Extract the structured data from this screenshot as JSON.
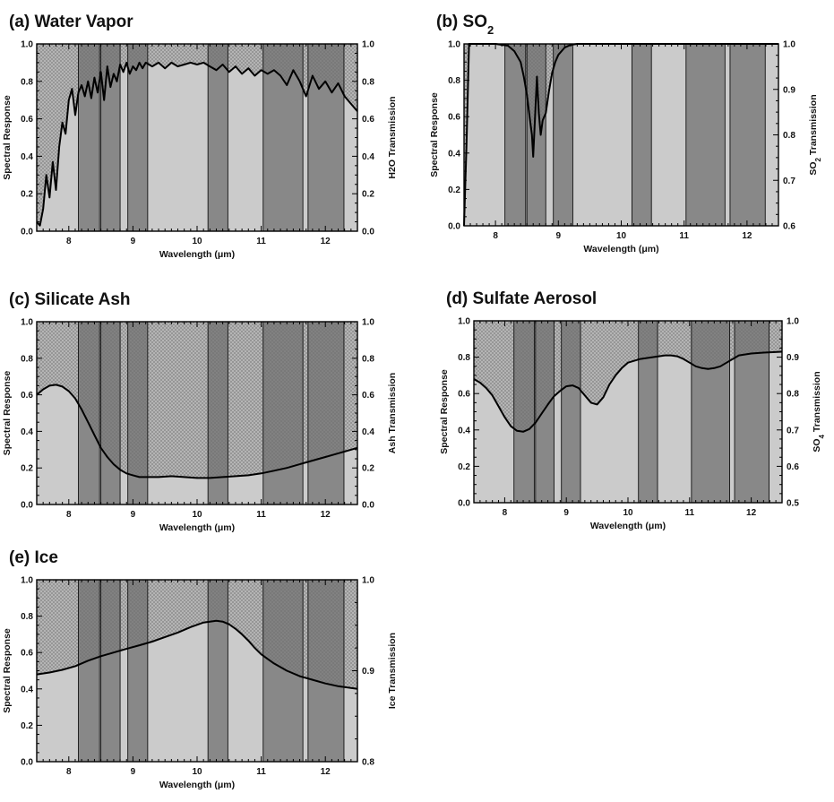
{
  "chart_data": [
    {
      "type": "line",
      "title": "(a) Water Vapor",
      "xlabel": "Wavelength (μm)",
      "ylabel": "Spectral Response",
      "y2label": "H2O Transmission",
      "xlim": [
        7.5,
        12.5
      ],
      "ylim": [
        0,
        1
      ],
      "y2lim": [
        0,
        1
      ],
      "xticks": [
        "8",
        "9",
        "10",
        "11",
        "12"
      ],
      "yticks": [
        "0.0",
        "0.2",
        "0.4",
        "0.6",
        "0.8",
        "1.0"
      ],
      "y2ticks": [
        "0.0",
        "0.2",
        "0.4",
        "0.6",
        "0.8",
        "1.0"
      ],
      "bands": [
        [
          8.15,
          8.48
        ],
        [
          8.5,
          8.8
        ],
        [
          8.92,
          9.23
        ],
        [
          10.17,
          10.48
        ],
        [
          11.03,
          11.65
        ],
        [
          11.73,
          12.29
        ]
      ],
      "series": [
        {
          "x": [
            7.5,
            7.55,
            7.6,
            7.65,
            7.7,
            7.75,
            7.8,
            7.85,
            7.9,
            7.95,
            8.0,
            8.05,
            8.1,
            8.15,
            8.2,
            8.25,
            8.3,
            8.35,
            8.4,
            8.45,
            8.5,
            8.55,
            8.6,
            8.65,
            8.7,
            8.75,
            8.8,
            8.85,
            8.9,
            8.95,
            9.0,
            9.05,
            9.1,
            9.15,
            9.2,
            9.3,
            9.4,
            9.5,
            9.6,
            9.7,
            9.8,
            9.9,
            10.0,
            10.1,
            10.2,
            10.3,
            10.4,
            10.5,
            10.6,
            10.7,
            10.8,
            10.9,
            11.0,
            11.1,
            11.2,
            11.3,
            11.4,
            11.5,
            11.6,
            11.7,
            11.8,
            11.9,
            12.0,
            12.1,
            12.2,
            12.3,
            12.4,
            12.5
          ],
          "values": [
            0.05,
            0.03,
            0.12,
            0.3,
            0.18,
            0.37,
            0.22,
            0.45,
            0.58,
            0.52,
            0.7,
            0.76,
            0.62,
            0.74,
            0.78,
            0.72,
            0.8,
            0.71,
            0.82,
            0.74,
            0.85,
            0.7,
            0.88,
            0.77,
            0.84,
            0.8,
            0.89,
            0.85,
            0.9,
            0.84,
            0.88,
            0.86,
            0.9,
            0.87,
            0.9,
            0.88,
            0.9,
            0.87,
            0.9,
            0.88,
            0.89,
            0.9,
            0.89,
            0.9,
            0.88,
            0.86,
            0.89,
            0.85,
            0.88,
            0.84,
            0.87,
            0.83,
            0.86,
            0.84,
            0.86,
            0.83,
            0.78,
            0.86,
            0.8,
            0.72,
            0.83,
            0.76,
            0.8,
            0.74,
            0.79,
            0.72,
            0.68,
            0.64
          ]
        }
      ]
    },
    {
      "type": "line",
      "title": "(b) SO",
      "title_sub": "2",
      "xlabel": "Wavelength (μm)",
      "ylabel": "Spectral Response",
      "y2label": "SO Transmission",
      "y2label_sub": "2",
      "xlim": [
        7.5,
        12.5
      ],
      "ylim": [
        0,
        1
      ],
      "y2lim": [
        0.6,
        1
      ],
      "xticks": [
        "8",
        "9",
        "10",
        "11",
        "12"
      ],
      "yticks": [
        "0.0",
        "0.2",
        "0.4",
        "0.6",
        "0.8",
        "1.0"
      ],
      "y2ticks": [
        "0.6",
        "0.7",
        "0.8",
        "0.9",
        "1.0"
      ],
      "bands": [
        [
          8.15,
          8.48
        ],
        [
          8.5,
          8.8
        ],
        [
          8.92,
          9.23
        ],
        [
          10.17,
          10.48
        ],
        [
          11.03,
          11.65
        ],
        [
          11.73,
          12.29
        ]
      ],
      "series": [
        {
          "x": [
            7.5,
            7.54,
            7.58,
            7.62,
            7.7,
            8.0,
            8.2,
            8.3,
            8.4,
            8.45,
            8.5,
            8.55,
            8.58,
            8.6,
            8.63,
            8.66,
            8.69,
            8.72,
            8.75,
            8.8,
            8.85,
            8.9,
            8.95,
            9.0,
            9.1,
            9.2,
            9.3,
            9.5,
            10.0,
            11.0,
            12.5
          ],
          "values": [
            0.0,
            0.45,
            1.0,
            1.0,
            1.0,
            1.0,
            0.99,
            0.96,
            0.9,
            0.82,
            0.72,
            0.58,
            0.5,
            0.38,
            0.6,
            0.82,
            0.62,
            0.5,
            0.58,
            0.62,
            0.74,
            0.84,
            0.9,
            0.94,
            0.98,
            0.995,
            1.0,
            1.0,
            1.0,
            1.0,
            1.0
          ]
        }
      ]
    },
    {
      "type": "line",
      "title": "(c) Silicate Ash",
      "xlabel": "Wavelength (μm)",
      "ylabel": "Spectral Response",
      "y2label": "Ash Transmission",
      "xlim": [
        7.5,
        12.5
      ],
      "ylim": [
        0,
        1
      ],
      "y2lim": [
        0,
        1
      ],
      "xticks": [
        "8",
        "9",
        "10",
        "11",
        "12"
      ],
      "yticks": [
        "0.0",
        "0.2",
        "0.4",
        "0.6",
        "0.8",
        "1.0"
      ],
      "y2ticks": [
        "0.0",
        "0.2",
        "0.4",
        "0.6",
        "0.8",
        "1.0"
      ],
      "bands": [
        [
          8.15,
          8.48
        ],
        [
          8.5,
          8.8
        ],
        [
          8.92,
          9.23
        ],
        [
          10.17,
          10.48
        ],
        [
          11.03,
          11.65
        ],
        [
          11.73,
          12.29
        ]
      ],
      "series": [
        {
          "x": [
            7.5,
            7.6,
            7.7,
            7.8,
            7.9,
            8.0,
            8.1,
            8.2,
            8.3,
            8.4,
            8.5,
            8.6,
            8.7,
            8.8,
            8.9,
            9.0,
            9.1,
            9.2,
            9.4,
            9.6,
            9.8,
            10.0,
            10.2,
            10.4,
            10.6,
            10.8,
            11.0,
            11.2,
            11.4,
            11.6,
            11.8,
            12.0,
            12.2,
            12.5
          ],
          "values": [
            0.6,
            0.63,
            0.65,
            0.655,
            0.645,
            0.62,
            0.58,
            0.52,
            0.45,
            0.38,
            0.31,
            0.26,
            0.22,
            0.19,
            0.17,
            0.16,
            0.15,
            0.15,
            0.15,
            0.155,
            0.15,
            0.145,
            0.145,
            0.15,
            0.155,
            0.16,
            0.17,
            0.185,
            0.2,
            0.22,
            0.24,
            0.26,
            0.28,
            0.31
          ]
        }
      ]
    },
    {
      "type": "line",
      "title": "(d) Sulfate Aerosol",
      "xlabel": "Wavelength (μm)",
      "ylabel": "Spectral Response",
      "y2label": "SO Transmission",
      "y2label_sub": "4",
      "xlim": [
        7.5,
        12.5
      ],
      "ylim": [
        0,
        1
      ],
      "y2lim": [
        0.5,
        1
      ],
      "xticks": [
        "8",
        "9",
        "10",
        "11",
        "12"
      ],
      "yticks": [
        "0.0",
        "0.2",
        "0.4",
        "0.6",
        "0.8",
        "1.0"
      ],
      "y2ticks": [
        "0.5",
        "0.6",
        "0.7",
        "0.8",
        "0.9",
        "1.0"
      ],
      "bands": [
        [
          8.15,
          8.48
        ],
        [
          8.5,
          8.8
        ],
        [
          8.92,
          9.23
        ],
        [
          10.17,
          10.48
        ],
        [
          11.03,
          11.65
        ],
        [
          11.73,
          12.29
        ]
      ],
      "series": [
        {
          "x": [
            7.5,
            7.6,
            7.7,
            7.8,
            7.9,
            8.0,
            8.1,
            8.2,
            8.3,
            8.4,
            8.5,
            8.6,
            8.7,
            8.8,
            8.9,
            9.0,
            9.1,
            9.2,
            9.3,
            9.4,
            9.5,
            9.6,
            9.7,
            9.8,
            9.9,
            10.0,
            10.2,
            10.4,
            10.6,
            10.7,
            10.8,
            10.9,
            11.0,
            11.1,
            11.2,
            11.3,
            11.4,
            11.5,
            11.6,
            11.7,
            11.8,
            12.0,
            12.2,
            12.5
          ],
          "values": [
            0.68,
            0.66,
            0.63,
            0.59,
            0.53,
            0.47,
            0.42,
            0.395,
            0.39,
            0.405,
            0.44,
            0.49,
            0.54,
            0.585,
            0.615,
            0.64,
            0.645,
            0.63,
            0.59,
            0.55,
            0.54,
            0.58,
            0.65,
            0.7,
            0.74,
            0.77,
            0.79,
            0.8,
            0.81,
            0.81,
            0.805,
            0.79,
            0.77,
            0.75,
            0.74,
            0.735,
            0.74,
            0.75,
            0.77,
            0.79,
            0.81,
            0.82,
            0.825,
            0.83
          ]
        }
      ]
    },
    {
      "type": "line",
      "title": "(e) Ice",
      "xlabel": "Wavelength (μm)",
      "ylabel": "Spectral Response",
      "y2label": "Ice Transmission",
      "xlim": [
        7.5,
        12.5
      ],
      "ylim": [
        0,
        1
      ],
      "y2lim": [
        0.8,
        1
      ],
      "xticks": [
        "8",
        "9",
        "10",
        "11",
        "12"
      ],
      "yticks": [
        "0.0",
        "0.2",
        "0.4",
        "0.6",
        "0.8",
        "1.0"
      ],
      "y2ticks": [
        "0.8",
        "0.9",
        "1.0"
      ],
      "bands": [
        [
          8.15,
          8.48
        ],
        [
          8.5,
          8.8
        ],
        [
          8.92,
          9.23
        ],
        [
          10.17,
          10.48
        ],
        [
          11.03,
          11.65
        ],
        [
          11.73,
          12.29
        ]
      ],
      "series": [
        {
          "x": [
            7.5,
            7.7,
            7.9,
            8.1,
            8.3,
            8.5,
            8.7,
            8.9,
            9.1,
            9.3,
            9.5,
            9.7,
            9.9,
            10.1,
            10.2,
            10.3,
            10.4,
            10.5,
            10.6,
            10.7,
            10.8,
            10.9,
            11.0,
            11.2,
            11.4,
            11.6,
            11.8,
            12.0,
            12.2,
            12.5
          ],
          "values": [
            0.48,
            0.49,
            0.505,
            0.525,
            0.555,
            0.58,
            0.6,
            0.62,
            0.64,
            0.66,
            0.685,
            0.71,
            0.74,
            0.765,
            0.77,
            0.775,
            0.77,
            0.755,
            0.73,
            0.7,
            0.665,
            0.625,
            0.59,
            0.54,
            0.5,
            0.47,
            0.45,
            0.43,
            0.415,
            0.4
          ]
        }
      ]
    }
  ]
}
